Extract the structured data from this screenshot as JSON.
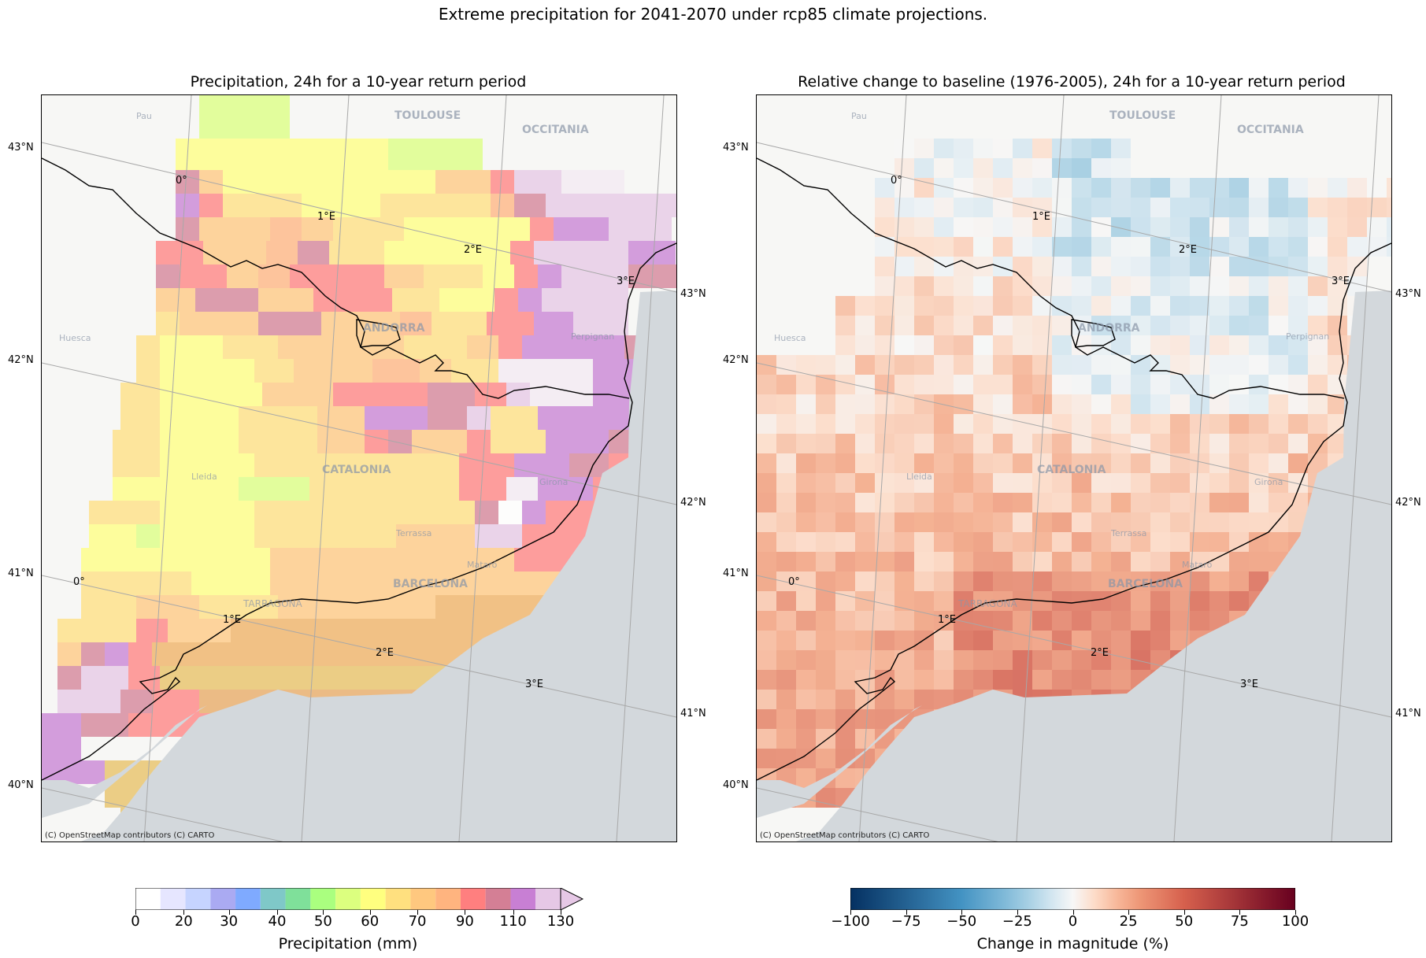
{
  "title": "Extreme precipitation for 2041-2070 under rcp85 climate projections.",
  "panels": [
    {
      "title": "Precipitation, 24h for a 10-year return period",
      "credit": "(C) OpenStreetMap contributors (C) CARTO",
      "colorbar": {
        "label": "Precipitation (mm)",
        "ticks": [
          "0",
          "20",
          "30",
          "40",
          "50",
          "60",
          "70",
          "90",
          "110",
          "130"
        ],
        "colors": [
          "#ffffff",
          "#e6e6ff",
          "#c6d4ff",
          "#aaaaf2",
          "#7faaff",
          "#7fc8c8",
          "#7fe09a",
          "#aaff7f",
          "#dcff7f",
          "#ffff7f",
          "#ffe07f",
          "#ffc87f",
          "#ffb47f",
          "#ff7f7f",
          "#d47f95",
          "#c87fd4",
          "#e6c8e6"
        ],
        "extend": "max"
      }
    },
    {
      "title": "Relative change to baseline (1976-2005), 24h for a 10-year return period",
      "credit": "(C) OpenStreetMap contributors (C) CARTO",
      "colorbar": {
        "label": "Change in magnitude (%)",
        "ticks": [
          "−100",
          "−75",
          "−50",
          "−25",
          "0",
          "25",
          "50",
          "75",
          "100"
        ],
        "range": [
          -100,
          100
        ],
        "colormap": "RdBu_r"
      }
    }
  ],
  "lat_labels": [
    "43°N",
    "42°N",
    "41°N",
    "40°N"
  ],
  "right_lat_labels": [
    "43°N",
    "42°N",
    "41°N"
  ],
  "lon_labels": [
    "0°",
    "1°E",
    "2°E",
    "3°E"
  ],
  "place_labels": [
    "TOULOUSE",
    "OCCITANIA",
    "ANDORRA",
    "CATALONIA",
    "BARCELONA",
    "TARRAGONA",
    "Pau",
    "Huesca",
    "Lleida",
    "Girona",
    "Terrassa",
    "Mataró",
    "Perpignan"
  ]
}
